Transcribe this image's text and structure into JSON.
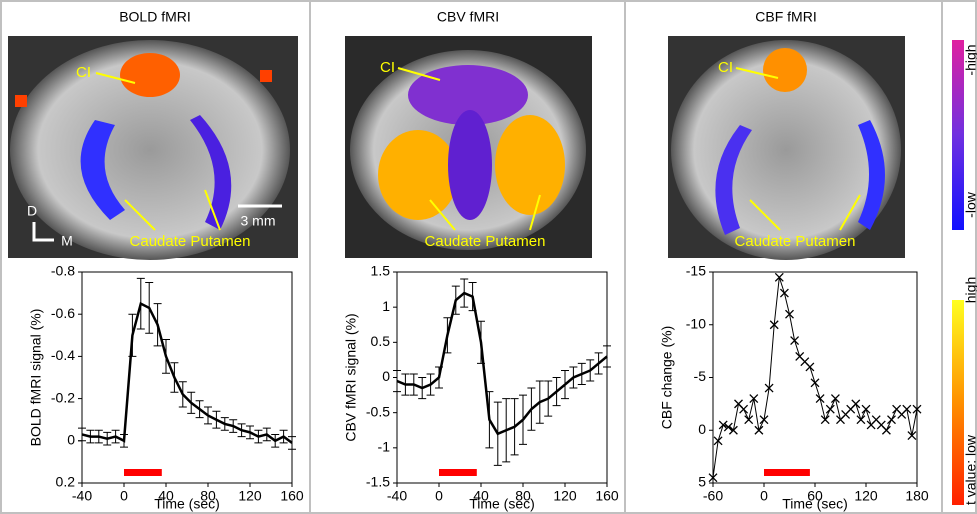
{
  "chart_data": [
    {
      "type": "line",
      "title": "BOLD fMRI",
      "xlabel": "Time (sec)",
      "ylabel": "BOLD fMRI signal (%)",
      "annotations": [
        "CI",
        "Caudate Putamen",
        "3 mm",
        "D",
        "M"
      ],
      "xlim": [
        -40,
        160
      ],
      "xticks": [
        -40,
        0,
        40,
        80,
        120,
        160
      ],
      "ylim": [
        0.2,
        -0.8
      ],
      "yticks": [
        -0.8,
        -0.6,
        -0.4,
        -0.2,
        0,
        0.2
      ],
      "x": [
        -40,
        -32,
        -24,
        -16,
        -8,
        0,
        8,
        16,
        24,
        32,
        40,
        48,
        56,
        64,
        72,
        80,
        88,
        96,
        104,
        112,
        120,
        128,
        136,
        144,
        152,
        160
      ],
      "series": [
        {
          "color": "#000000",
          "values": [
            -0.03,
            -0.02,
            -0.02,
            -0.01,
            -0.02,
            0,
            -0.5,
            -0.65,
            -0.63,
            -0.55,
            -0.4,
            -0.3,
            -0.22,
            -0.18,
            -0.15,
            -0.12,
            -0.1,
            -0.08,
            -0.07,
            -0.05,
            -0.04,
            -0.02,
            -0.03,
            0,
            -0.02,
            0.01
          ],
          "errors": [
            0.03,
            0.03,
            0.03,
            0.03,
            0.03,
            0.03,
            0.1,
            0.12,
            0.12,
            0.1,
            0.08,
            0.07,
            0.06,
            0.05,
            0.04,
            0.04,
            0.04,
            0.03,
            0.03,
            0.03,
            0.03,
            0.03,
            0.03,
            0.03,
            0.03,
            0.03
          ]
        }
      ],
      "stimulus": {
        "x": [
          0,
          36
        ],
        "color": "#ff0000"
      }
    },
    {
      "type": "line",
      "title": "CBV fMRI",
      "xlabel": "Time (sec)",
      "ylabel": "CBV fMRI signal (%)",
      "annotations": [
        "CI",
        "Caudate Putamen"
      ],
      "xlim": [
        -40,
        160
      ],
      "xticks": [
        -40,
        0,
        40,
        80,
        120,
        160
      ],
      "ylim": [
        -1.5,
        1.5
      ],
      "yticks": [
        1.5,
        1,
        0.5,
        0,
        -0.5,
        -1,
        -1.5
      ],
      "x": [
        -40,
        -32,
        -24,
        -16,
        -8,
        0,
        8,
        16,
        24,
        32,
        40,
        48,
        56,
        64,
        72,
        80,
        88,
        96,
        104,
        112,
        120,
        128,
        136,
        144,
        152,
        160
      ],
      "series": [
        {
          "color": "#000000",
          "values": [
            -0.05,
            -0.1,
            -0.1,
            -0.15,
            -0.1,
            0,
            0.6,
            1.1,
            1.2,
            1.15,
            0.5,
            -0.6,
            -0.8,
            -0.75,
            -0.7,
            -0.6,
            -0.45,
            -0.35,
            -0.3,
            -0.2,
            -0.1,
            0,
            0.05,
            0.1,
            0.2,
            0.3
          ],
          "errors": [
            0.15,
            0.15,
            0.15,
            0.15,
            0.15,
            0.15,
            0.25,
            0.2,
            0.2,
            0.2,
            0.3,
            0.4,
            0.45,
            0.45,
            0.4,
            0.35,
            0.3,
            0.3,
            0.25,
            0.2,
            0.2,
            0.15,
            0.15,
            0.15,
            0.15,
            0.15
          ]
        }
      ],
      "stimulus": {
        "x": [
          0,
          36
        ],
        "color": "#ff0000"
      }
    },
    {
      "type": "line",
      "marker": "x",
      "title": "CBF fMRI",
      "xlabel": "Time (sec)",
      "ylabel": "CBF change (%)",
      "annotations": [
        "CI",
        "Caudate Putamen"
      ],
      "xlim": [
        -60,
        180
      ],
      "xticks": [
        -60,
        0,
        60,
        120,
        180
      ],
      "ylim": [
        5,
        -15
      ],
      "yticks": [
        -15,
        -10,
        -5,
        0,
        5
      ],
      "x": [
        -60,
        -54,
        -48,
        -42,
        -36,
        -30,
        -24,
        -18,
        -12,
        -6,
        0,
        6,
        12,
        18,
        24,
        30,
        36,
        42,
        48,
        54,
        60,
        66,
        72,
        78,
        84,
        90,
        96,
        102,
        108,
        114,
        120,
        126,
        132,
        138,
        144,
        150,
        156,
        162,
        168,
        174,
        180
      ],
      "series": [
        {
          "color": "#000000",
          "values": [
            4.5,
            1,
            -0.5,
            -0.3,
            0,
            -2.5,
            -2,
            -1,
            -3,
            0,
            -1,
            -4,
            -10,
            -14.5,
            -13,
            -11,
            -8.5,
            -7,
            -6.5,
            -6,
            -4.5,
            -3,
            -1,
            -2,
            -3,
            -1,
            -1.5,
            -2,
            -2.5,
            -1,
            -2,
            -0.5,
            -1,
            -0.5,
            0,
            -1,
            -2,
            -1.5,
            -2,
            0.5,
            -2
          ]
        }
      ],
      "stimulus": {
        "x": [
          0,
          54
        ],
        "color": "#ff0000"
      }
    }
  ],
  "colorbar": {
    "labels": [
      "-high",
      "-low",
      "high",
      "t value: low"
    ]
  }
}
